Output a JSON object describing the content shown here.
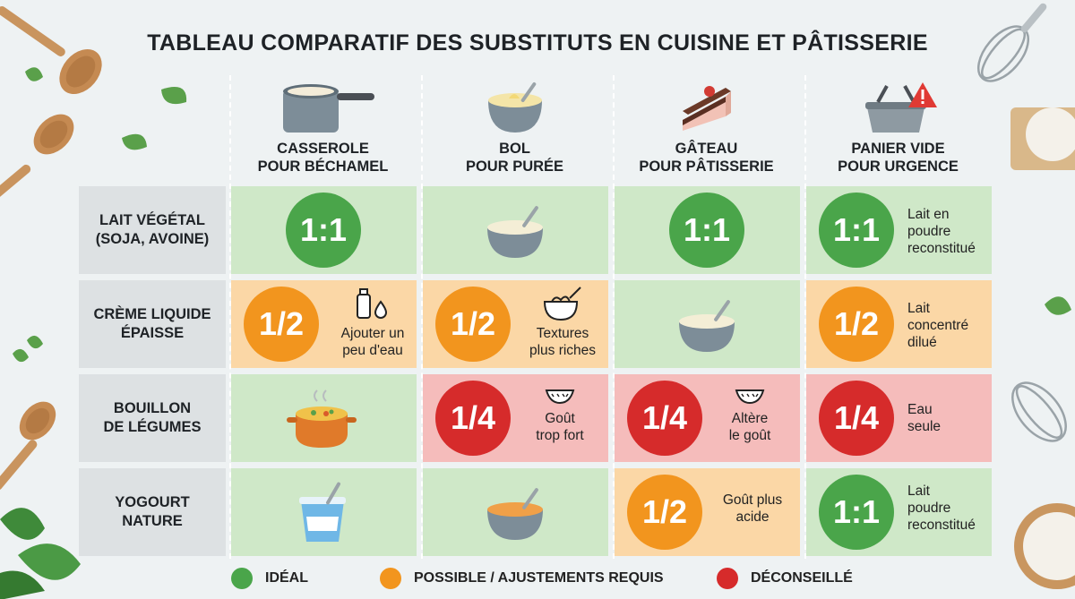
{
  "title": "TABLEAU COMPARATIF DES SUBSTITUTS EN CUISINE ET PÂTISSERIE",
  "columns": [
    {
      "label": "CASSEROLE\nPOUR BÉCHAMEL",
      "icon": "saucepan-icon"
    },
    {
      "label": "BOL\nPOUR PURÉE",
      "icon": "bowl-icon"
    },
    {
      "label": "GÂTEAU\nPOUR PÂTISSERIE",
      "icon": "cake-icon"
    },
    {
      "label": "PANIER VIDE\nPOUR URGENCE",
      "icon": "empty-basket-warning-icon"
    }
  ],
  "rows": [
    {
      "label": "LAIT VÉGÉTAL\n(SOJA, AVOINE)",
      "cells": [
        {
          "status": "ideal",
          "ratio": "1:1",
          "note": "",
          "icon": ""
        },
        {
          "status": "ideal",
          "ratio": "",
          "note": "",
          "icon": "bowl-icon"
        },
        {
          "status": "ideal",
          "ratio": "1:1",
          "note": "",
          "icon": ""
        },
        {
          "status": "ideal",
          "ratio": "1:1",
          "note": "Lait en\npoudre\nreconstitué",
          "icon": ""
        }
      ]
    },
    {
      "label": "CRÈME LIQUIDE\nÉPAISSE",
      "cells": [
        {
          "status": "possible",
          "ratio": "1/2",
          "note": "Ajouter un\npeu d'eau",
          "icon": "bottle-drop-icon"
        },
        {
          "status": "possible",
          "ratio": "1/2",
          "note": "Textures\nplus riches",
          "icon": "whisk-bowl-icon"
        },
        {
          "status": "ideal",
          "ratio": "",
          "note": "",
          "icon": "bowl-icon"
        },
        {
          "status": "possible",
          "ratio": "1/2",
          "note": "Lait\nconcentré\ndilué",
          "icon": ""
        }
      ]
    },
    {
      "label": "BOUILLON\nDE LÉGUMES",
      "cells": [
        {
          "status": "ideal",
          "ratio": "",
          "note": "",
          "icon": "soup-pot-icon"
        },
        {
          "status": "not_recommended",
          "ratio": "1/4",
          "note": "Goût\ntrop fort",
          "icon": "wave-icon"
        },
        {
          "status": "not_recommended",
          "ratio": "1/4",
          "note": "Altère\nle goût",
          "icon": "wave-icon"
        },
        {
          "status": "not_recommended",
          "ratio": "1/4",
          "note": "Eau\nseule",
          "icon": ""
        }
      ]
    },
    {
      "label": "YOGOURT\nNATURE",
      "cells": [
        {
          "status": "ideal",
          "ratio": "",
          "note": "",
          "icon": "yogurt-cup-icon"
        },
        {
          "status": "ideal",
          "ratio": "",
          "note": "",
          "icon": "orange-bowl-icon"
        },
        {
          "status": "possible",
          "ratio": "1/2",
          "note": "Goût plus\nacide",
          "icon": ""
        },
        {
          "status": "ideal",
          "ratio": "1:1",
          "note": "Lait\npoudre\nreconstitué",
          "icon": ""
        }
      ]
    }
  ],
  "legend": [
    {
      "label": "IDÉAL",
      "color": "#4aa54a"
    },
    {
      "label": "POSSIBLE / AJUSTEMENTS REQUIS",
      "color": "#f2951e"
    },
    {
      "label": "DÉCONSEILLÉ",
      "color": "#d62b2b"
    }
  ],
  "colors": {
    "ideal_bg": "#cfe8c8",
    "possible_bg": "#fbd7a6",
    "not_recommended_bg": "#f5bcbb",
    "ideal": "#4aa54a",
    "possible": "#f2951e",
    "not_recommended": "#d62b2b"
  }
}
